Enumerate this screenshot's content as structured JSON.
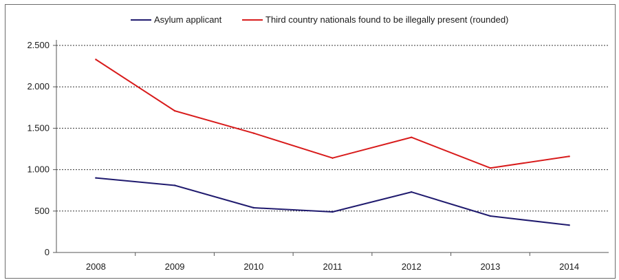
{
  "chart_data": {
    "type": "line",
    "title": "",
    "xlabel": "",
    "ylabel": "",
    "categories": [
      "2008",
      "2009",
      "2010",
      "2011",
      "2012",
      "2013",
      "2014"
    ],
    "ylim": [
      0,
      2500
    ],
    "yticks": [
      0,
      500,
      1000,
      1500,
      2000,
      2500
    ],
    "ytick_labels": [
      "0",
      "500",
      "1.000",
      "1.500",
      "2.000",
      "2.500"
    ],
    "grid": "horizontal dashed",
    "legend_position": "top",
    "series": [
      {
        "name": "Asylum applicant",
        "color": "#1f1a6e",
        "values": [
          900,
          810,
          540,
          490,
          730,
          440,
          330
        ]
      },
      {
        "name": "Third country nationals found to be illegally present (rounded)",
        "color": "#d81b1b",
        "values": [
          2330,
          1710,
          1440,
          1140,
          1390,
          1020,
          1160
        ]
      }
    ]
  }
}
